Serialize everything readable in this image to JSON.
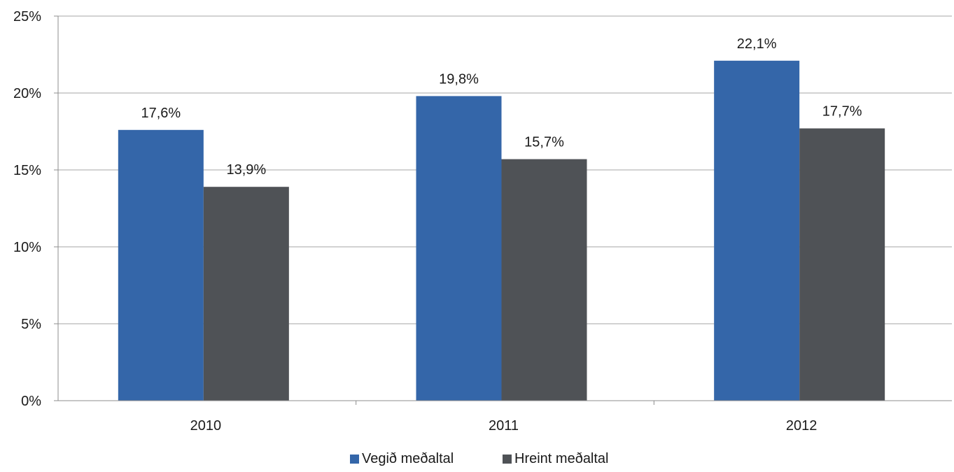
{
  "chart_data": {
    "type": "bar",
    "categories": [
      "2010",
      "2011",
      "2012"
    ],
    "series": [
      {
        "name": "Vegið meðaltal",
        "color": "#3466a9",
        "values": [
          17.6,
          19.8,
          22.1
        ],
        "labels": [
          "17,6%",
          "19,8%",
          "22,1%"
        ]
      },
      {
        "name": "Hreint meðaltal",
        "color": "#4f5256",
        "values": [
          13.9,
          15.7,
          17.7
        ],
        "labels": [
          "13,9%",
          "15,7%",
          "17,7%"
        ]
      }
    ],
    "ylim": [
      0,
      25
    ],
    "yticks": [
      0,
      5,
      10,
      15,
      20,
      25
    ],
    "ytick_labels": [
      "0%",
      "5%",
      "10%",
      "15%",
      "20%",
      "25%"
    ],
    "grid": true,
    "legend": "bottom"
  }
}
